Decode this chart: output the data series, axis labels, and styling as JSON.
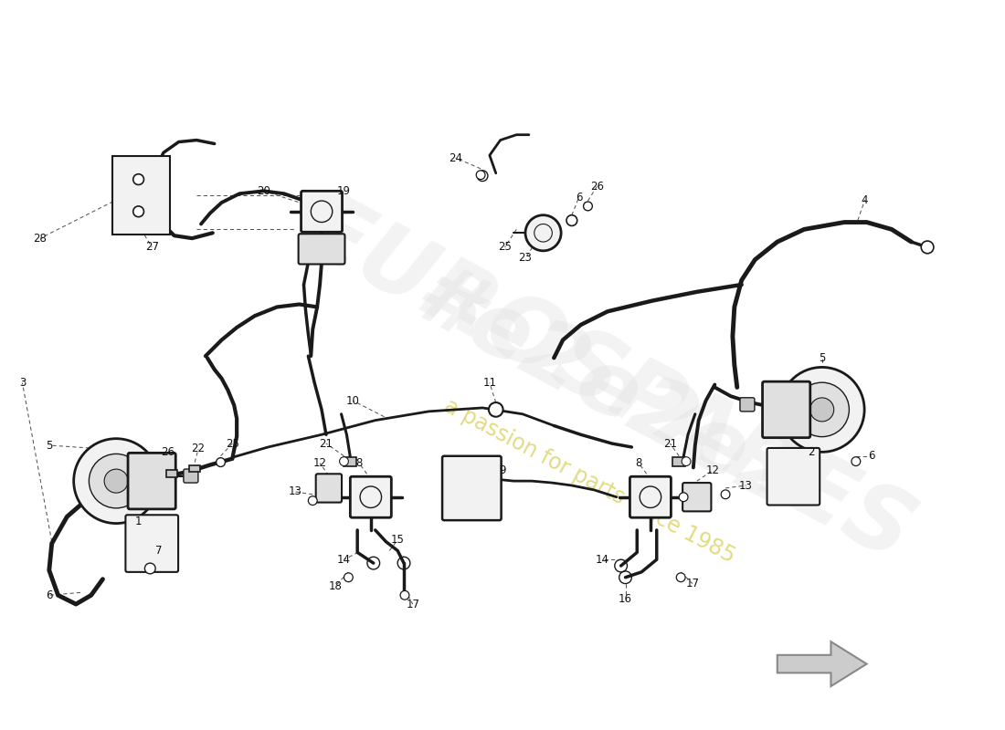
{
  "bg": "#ffffff",
  "lc": "#1a1a1a",
  "dc": "#555555",
  "lbl": "#111111",
  "wm1": "#e2e2e2",
  "wm2": "#d4c840",
  "part_fill": "#f2f2f2",
  "part_fill2": "#e0e0e0",
  "part_fill3": "#c8c8c8",
  "hose_color": "#1a1a1a",
  "arrow_fill": "#bbbbbb",
  "arrow_stroke": "#888888",
  "fs": 8.5
}
